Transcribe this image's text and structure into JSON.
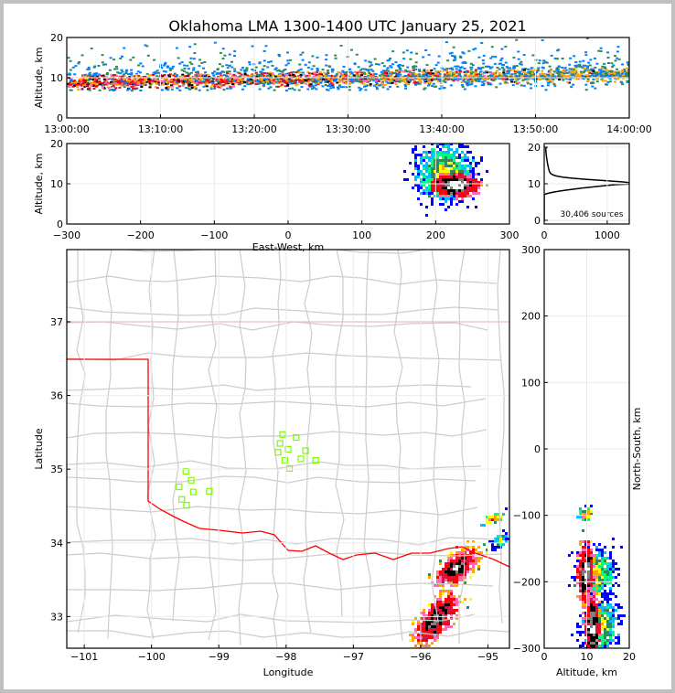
{
  "chart_data": [
    {
      "type": "heatmap",
      "name": "time-height",
      "title": "Oklahoma LMA 1300-1400 UTC January 25, 2021",
      "xlabel": "",
      "ylabel": "Altitude, km",
      "xticks": [
        "13:00:00",
        "13:10:00",
        "13:20:00",
        "13:30:00",
        "13:40:00",
        "13:50:00",
        "14:00:00"
      ],
      "yticks": [
        "0",
        "10",
        "20"
      ],
      "xlim": [
        "13:00:00",
        "14:00:00"
      ],
      "ylim": [
        0,
        20
      ]
    },
    {
      "type": "heatmap",
      "name": "east-west-altitude",
      "xlabel": "East-West, km",
      "ylabel": "Altitude, km",
      "xticks": [
        "−300",
        "−200",
        "−100",
        "0",
        "100",
        "200",
        "300"
      ],
      "yticks": [
        "0",
        "10",
        "20"
      ],
      "xlim": [
        -300,
        300
      ],
      "ylim": [
        0,
        20
      ]
    },
    {
      "type": "line",
      "name": "altitude-histogram",
      "xticks": [
        "0",
        "1000"
      ],
      "yticks": [
        "0",
        "10",
        "20"
      ],
      "xlim": [
        0,
        1350
      ],
      "ylim": [
        0,
        21
      ],
      "annotation": "30,406 sources",
      "peak": {
        "altitude_km": 10,
        "count": 1280
      }
    },
    {
      "type": "scatter",
      "name": "plan-view-map",
      "xlabel": "Longitude",
      "ylabel": "Latitude",
      "xticks": [
        "−101",
        "−100",
        "−99",
        "−98",
        "−97",
        "−96",
        "−95"
      ],
      "yticks": [
        "33",
        "34",
        "35",
        "36",
        "37"
      ],
      "xlim": [
        -101.26,
        -94.68
      ],
      "ylim": [
        32.57,
        37.98
      ],
      "stations": [
        [
          -99.49,
          34.97
        ],
        [
          -99.41,
          34.85
        ],
        [
          -99.59,
          34.76
        ],
        [
          -99.38,
          34.69
        ],
        [
          -99.55,
          34.59
        ],
        [
          -99.48,
          34.51
        ],
        [
          -99.14,
          34.7
        ],
        [
          -98.05,
          35.47
        ],
        [
          -97.85,
          35.43
        ],
        [
          -98.09,
          35.35
        ],
        [
          -97.97,
          35.27
        ],
        [
          -98.12,
          35.23
        ],
        [
          -97.71,
          35.25
        ],
        [
          -98.02,
          35.12
        ],
        [
          -97.78,
          35.14
        ],
        [
          -97.56,
          35.12
        ],
        [
          -97.95,
          35.01
        ]
      ],
      "station_color": "#7cfc00",
      "state_border_color": "#ff0000"
    },
    {
      "type": "heatmap",
      "name": "north-south-altitude",
      "xlabel": "Altitude, km",
      "ylabel": "North-South, km",
      "xticks": [
        "0",
        "10",
        "20"
      ],
      "yticks": [
        "300",
        "200",
        "100",
        "0",
        "−100",
        "−200",
        "−300"
      ],
      "xlim": [
        0,
        20
      ],
      "ylim": [
        -300,
        300
      ]
    }
  ]
}
